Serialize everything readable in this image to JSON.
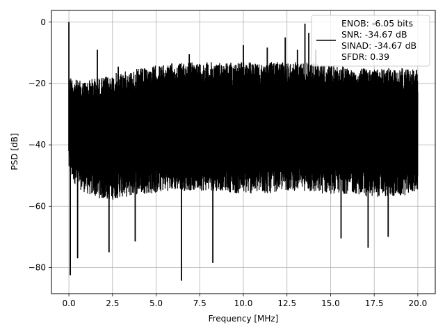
{
  "chart_data": {
    "type": "line",
    "title": "",
    "xlabel": "Frequency [MHz]",
    "ylabel": "PSD [dB]",
    "xlim": [
      -1.0,
      21.0
    ],
    "ylim": [
      -88.5,
      3.8
    ],
    "xticks": [
      0.0,
      2.5,
      5.0,
      7.5,
      10.0,
      12.5,
      15.0,
      17.5,
      20.0
    ],
    "xtick_labels": [
      "0.0",
      "2.5",
      "5.0",
      "7.5",
      "10.0",
      "12.5",
      "15.0",
      "17.5",
      "20.0"
    ],
    "yticks": [
      0,
      -20,
      -40,
      -60,
      -80
    ],
    "ytick_labels": [
      "0",
      "−20",
      "−40",
      "−60",
      "−80"
    ],
    "grid": true,
    "legend_position": "top-right",
    "legend_lines": [
      "ENOB: -6.05 bits",
      "SNR: -34.67 dB",
      "SINAD: -34.67 dB",
      "SFDR: 0.39"
    ],
    "series": [
      {
        "color": "#000000",
        "envelope_x": [
          0.0,
          0.5,
          1.0,
          1.5,
          2.0,
          2.5,
          3.0,
          3.5,
          4.0,
          4.5,
          5.0,
          5.5,
          6.0,
          6.5,
          7.0,
          7.5,
          8.0,
          8.5,
          9.0,
          9.5,
          10.0,
          10.5,
          11.0,
          11.5,
          12.0,
          12.5,
          13.0,
          13.5,
          14.0,
          14.5,
          15.0,
          15.5,
          16.0,
          16.5,
          17.0,
          17.5,
          18.0,
          18.5,
          19.0,
          19.5,
          20.0
        ],
        "envelope_max": [
          -17,
          -19,
          -19,
          -18,
          -18,
          -17,
          -16,
          -16,
          -15,
          -15,
          -14,
          -14,
          -14,
          -13,
          -13,
          -13,
          -13,
          -13,
          -13,
          -13,
          -13,
          -13,
          -14,
          -13,
          -13,
          -13,
          -13,
          -13,
          -13,
          -14,
          -14,
          -14,
          -15,
          -15,
          -15,
          -15,
          -15,
          -15,
          -15,
          -15,
          -15
        ],
        "envelope_min": [
          -50,
          -54,
          -56,
          -57,
          -58,
          -58,
          -57,
          -57,
          -56,
          -56,
          -56,
          -55,
          -55,
          -55,
          -55,
          -55,
          -55,
          -55,
          -55,
          -56,
          -56,
          -56,
          -56,
          -56,
          -55,
          -55,
          -55,
          -55,
          -56,
          -56,
          -56,
          -56,
          -56,
          -56,
          -57,
          -57,
          -57,
          -57,
          -57,
          -56,
          -55
        ],
        "peaks": [
          {
            "x": 0.0,
            "y": 0.0
          },
          {
            "x": 1.63,
            "y": -9.0
          },
          {
            "x": 2.83,
            "y": -14.5
          },
          {
            "x": 5.9,
            "y": -13.5
          },
          {
            "x": 6.9,
            "y": -10.5
          },
          {
            "x": 10.0,
            "y": -7.5
          },
          {
            "x": 11.37,
            "y": -8.3
          },
          {
            "x": 12.4,
            "y": -5.0
          },
          {
            "x": 13.1,
            "y": -9.0
          },
          {
            "x": 13.53,
            "y": -0.5
          },
          {
            "x": 13.75,
            "y": -3.5
          },
          {
            "x": 14.15,
            "y": -9.0
          },
          {
            "x": 14.5,
            "y": -14.0
          }
        ],
        "dips": [
          {
            "x": 0.08,
            "y": -82.5
          },
          {
            "x": 0.5,
            "y": -77.0
          },
          {
            "x": 2.3,
            "y": -75.0
          },
          {
            "x": 3.8,
            "y": -71.5
          },
          {
            "x": 6.45,
            "y": -84.3
          },
          {
            "x": 8.25,
            "y": -78.5
          },
          {
            "x": 15.6,
            "y": -70.5
          },
          {
            "x": 17.15,
            "y": -73.5
          },
          {
            "x": 18.3,
            "y": -70.0
          }
        ]
      }
    ]
  }
}
